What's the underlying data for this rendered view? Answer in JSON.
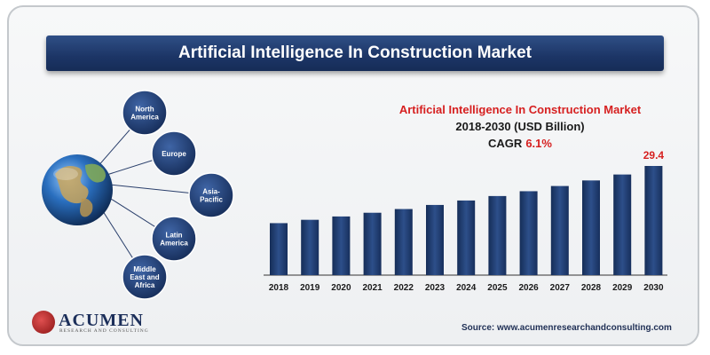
{
  "banner": {
    "title": "Artificial Intelligence In Construction Market"
  },
  "regions": [
    "North America",
    "Europe",
    "Asia-Pacific",
    "Latin America",
    "Middle East and Africa"
  ],
  "chart_data": {
    "type": "bar",
    "title": "Artificial Intelligence In Construction Market",
    "subtitle": "2018-2030  (USD Billion)",
    "cagr_label": "CAGR",
    "cagr_value": "6.1%",
    "categories": [
      "2018",
      "2019",
      "2020",
      "2021",
      "2022",
      "2023",
      "2024",
      "2025",
      "2026",
      "2027",
      "2028",
      "2029",
      "2030"
    ],
    "values": [
      14.0,
      14.9,
      15.8,
      16.8,
      17.8,
      18.9,
      20.1,
      21.3,
      22.6,
      24.0,
      25.5,
      27.1,
      29.4
    ],
    "data_labels": {
      "2030": "29.4"
    },
    "xlabel": "",
    "ylabel": "",
    "ylim": [
      0,
      29.4
    ],
    "grid": false,
    "colors": {
      "bar": "#1f3a6b",
      "accent": "#d62020"
    }
  },
  "source": "Source: www.acumenresearchandconsulting.com",
  "logo": {
    "name": "ACUMEN",
    "tagline": "RESEARCH AND CONSULTING"
  }
}
